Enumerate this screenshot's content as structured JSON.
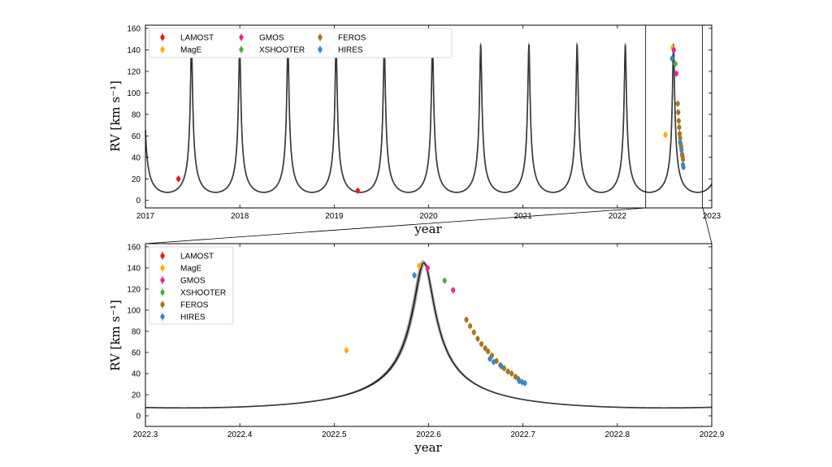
{
  "chart_data": [
    {
      "type": "scatter",
      "panel": "top",
      "xlabel": "year",
      "ylabel": "RV [km s⁻¹]",
      "xlim": [
        2017,
        2023
      ],
      "ylim": [
        -7,
        163
      ],
      "xticks": [
        "2017",
        "2018",
        "2019",
        "2020",
        "2021",
        "2022",
        "2023"
      ],
      "yticks": [
        "0",
        "20",
        "40",
        "60",
        "80",
        "100",
        "120",
        "140",
        "160"
      ],
      "legend": [
        "LAMOST",
        "MagE",
        "GMOS",
        "XSHOOTER",
        "FEROS",
        "HIRES"
      ],
      "legend_columns": 4,
      "legend_position": "top-left",
      "model": {
        "period_yr": 0.5107,
        "peak_time": 2022.595,
        "peak_rv": 145,
        "min_rv": 7.5,
        "description": "eccentric binary orbit model (black curves)"
      },
      "zoom_window": [
        2022.3,
        2022.9
      ],
      "series": [
        {
          "name": "LAMOST",
          "color": "#e41a1c",
          "points": [
            [
              2017.35,
              20
            ],
            [
              2019.25,
              9
            ]
          ]
        },
        {
          "name": "MagE",
          "color": "#ffb000",
          "points": [
            [
              2022.51,
              61
            ],
            [
              2022.585,
              142
            ]
          ]
        },
        {
          "name": "GMOS",
          "color": "#e7298a",
          "points": [
            [
              2022.598,
              140
            ],
            [
              2022.625,
              118
            ]
          ]
        },
        {
          "name": "XSHOOTER",
          "color": "#4daf4a",
          "points": [
            [
              2022.615,
              127
            ]
          ]
        },
        {
          "name": "FEROS",
          "color": "#a6761d",
          "points": [
            [
              2022.64,
              90
            ],
            [
              2022.645,
              82
            ],
            [
              2022.65,
              74
            ],
            [
              2022.655,
              68
            ],
            [
              2022.66,
              62
            ],
            [
              2022.665,
              58
            ],
            [
              2022.67,
              53
            ],
            [
              2022.675,
              50
            ],
            [
              2022.685,
              43
            ],
            [
              2022.69,
              41
            ],
            [
              2022.695,
              38
            ]
          ]
        },
        {
          "name": "HIRES",
          "color": "#3a87c8",
          "points": [
            [
              2022.58,
              132
            ],
            [
              2022.665,
              54
            ],
            [
              2022.68,
              47
            ],
            [
              2022.695,
              33
            ],
            [
              2022.7,
              31
            ]
          ]
        }
      ]
    },
    {
      "type": "scatter",
      "panel": "bottom",
      "xlabel": "year",
      "ylabel": "RV [km s⁻¹]",
      "xlim": [
        2022.3,
        2022.9
      ],
      "ylim": [
        -10,
        163
      ],
      "xticks": [
        "2022.3",
        "2022.4",
        "2022.5",
        "2022.6",
        "2022.7",
        "2022.8",
        "2022.9"
      ],
      "yticks": [
        "0",
        "20",
        "40",
        "60",
        "80",
        "100",
        "120",
        "140",
        "160"
      ],
      "legend": [
        "LAMOST",
        "MagE",
        "GMOS",
        "XSHOOTER",
        "FEROS",
        "HIRES"
      ],
      "legend_columns": 1,
      "legend_position": "top-left",
      "series": [
        {
          "name": "LAMOST",
          "color": "#e41a1c",
          "points": []
        },
        {
          "name": "MagE",
          "color": "#ffb000",
          "points": [
            [
              2022.513,
              62
            ],
            [
              2022.59,
              142
            ]
          ]
        },
        {
          "name": "GMOS",
          "color": "#e7298a",
          "points": [
            [
              2022.599,
              140
            ],
            [
              2022.626,
              119
            ]
          ]
        },
        {
          "name": "XSHOOTER",
          "color": "#4daf4a",
          "points": [
            [
              2022.617,
              128
            ]
          ]
        },
        {
          "name": "FEROS",
          "color": "#a6761d",
          "points": [
            [
              2022.64,
              91
            ],
            [
              2022.644,
              85
            ],
            [
              2022.648,
              79
            ],
            [
              2022.652,
              73
            ],
            [
              2022.656,
              68
            ],
            [
              2022.66,
              64
            ],
            [
              2022.663,
              61
            ],
            [
              2022.667,
              57
            ],
            [
              2022.672,
              52
            ],
            [
              2022.676,
              48
            ],
            [
              2022.68,
              45
            ],
            [
              2022.684,
              42
            ],
            [
              2022.688,
              40
            ],
            [
              2022.692,
              37
            ],
            [
              2022.695,
              35
            ]
          ]
        },
        {
          "name": "HIRES",
          "color": "#3a87c8",
          "points": [
            [
              2022.585,
              133
            ],
            [
              2022.665,
              54
            ],
            [
              2022.669,
              51
            ],
            [
              2022.677,
              47
            ],
            [
              2022.696,
              33
            ],
            [
              2022.699,
              32
            ],
            [
              2022.702,
              31
            ]
          ]
        }
      ]
    }
  ]
}
